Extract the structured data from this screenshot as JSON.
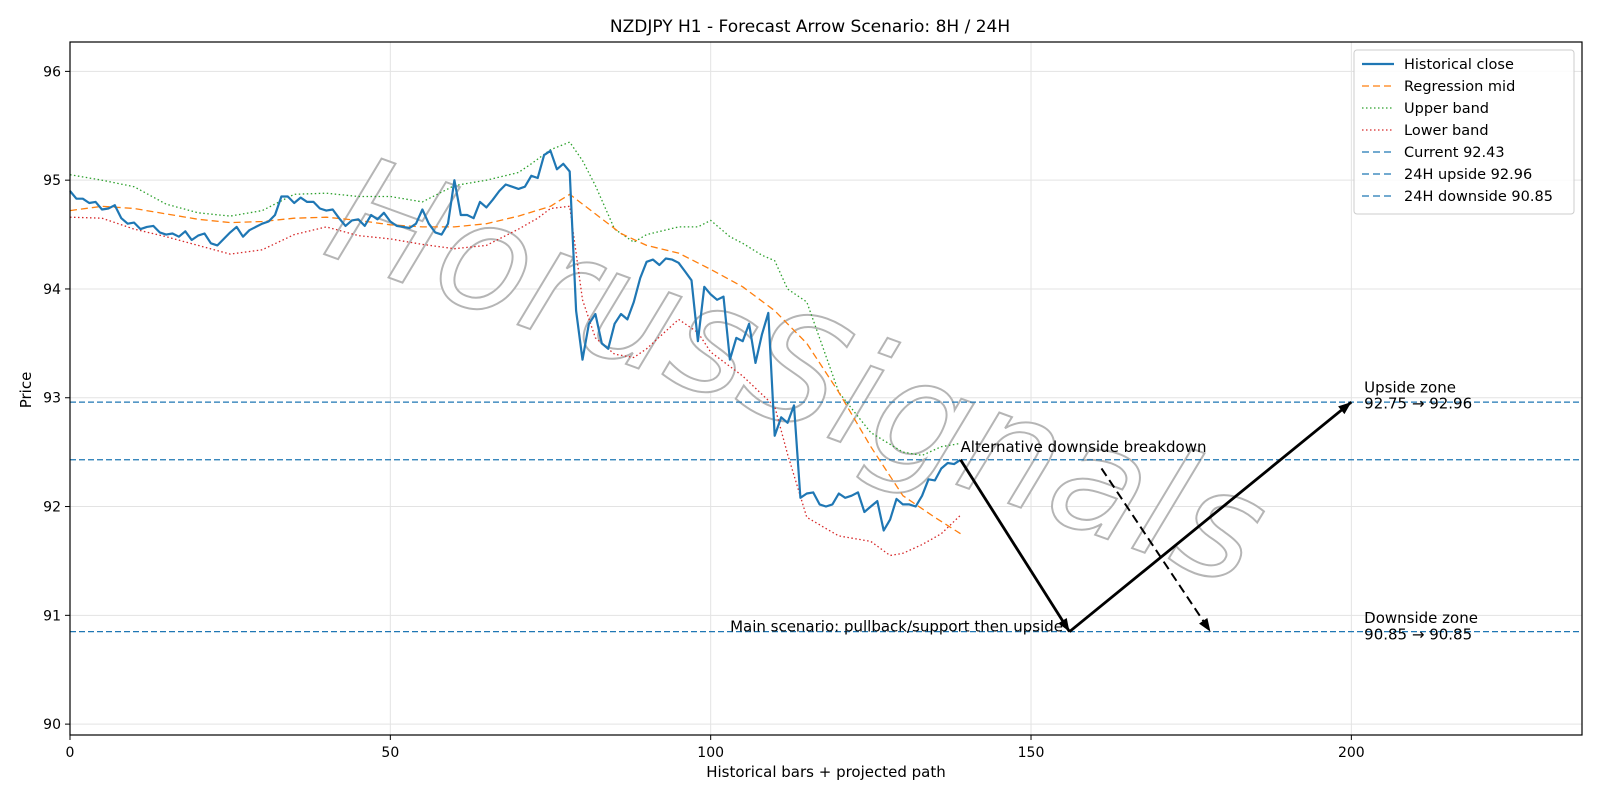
{
  "chart_data": {
    "type": "line",
    "title": "NZDJPY H1 - Forecast Arrow Scenario: 8H / 24H",
    "xlabel": "Historical bars + projected path",
    "ylabel": "Price",
    "xlim": [
      0,
      236
    ],
    "ylim": [
      89.9,
      96.27
    ],
    "xticks": [
      0,
      50,
      100,
      150,
      200
    ],
    "yticks": [
      90,
      91,
      92,
      93,
      94,
      95,
      96
    ],
    "grid": true,
    "legend_position": "top-right",
    "watermark": "HorusSignals",
    "colors": {
      "historical": "#1f77b4",
      "regression": "#ff7f0e",
      "upper": "#2ca02c",
      "lower": "#d62728",
      "levels": "#1f77b4",
      "arrows": "#000000"
    },
    "series": [
      {
        "name": "Historical close",
        "style": "solid",
        "key": "historical",
        "x": [
          0,
          1,
          2,
          3,
          4,
          5,
          6,
          7,
          8,
          9,
          10,
          11,
          12,
          13,
          14,
          15,
          16,
          17,
          18,
          19,
          20,
          21,
          22,
          23,
          24,
          25,
          26,
          27,
          28,
          29,
          30,
          31,
          32,
          33,
          34,
          35,
          36,
          37,
          38,
          39,
          40,
          41,
          42,
          43,
          44,
          45,
          46,
          47,
          48,
          49,
          50,
          51,
          52,
          53,
          54,
          55,
          56,
          57,
          58,
          59,
          60,
          61,
          62,
          63,
          64,
          65,
          66,
          67,
          68,
          69,
          70,
          71,
          72,
          73,
          74,
          75,
          76,
          77,
          78,
          79,
          80,
          81,
          82,
          83,
          84,
          85,
          86,
          87,
          88,
          89,
          90,
          91,
          92,
          93,
          94,
          95,
          96,
          97,
          98,
          99,
          100,
          101,
          102,
          103,
          104,
          105,
          106,
          107,
          108,
          109,
          110,
          111,
          112,
          113,
          114,
          115,
          116,
          117,
          118,
          119,
          120,
          121,
          122,
          123,
          124,
          125,
          126,
          127,
          128,
          129,
          130,
          131,
          132,
          133,
          134,
          135,
          136,
          137,
          138,
          139
        ],
        "values": [
          94.9,
          94.83,
          94.83,
          94.79,
          94.8,
          94.73,
          94.74,
          94.77,
          94.65,
          94.6,
          94.61,
          94.55,
          94.57,
          94.58,
          94.52,
          94.5,
          94.51,
          94.48,
          94.53,
          94.45,
          94.49,
          94.51,
          94.42,
          94.4,
          94.46,
          94.52,
          94.57,
          94.48,
          94.54,
          94.57,
          94.6,
          94.62,
          94.68,
          94.85,
          94.85,
          94.79,
          94.84,
          94.8,
          94.8,
          94.74,
          94.72,
          94.73,
          94.65,
          94.58,
          94.63,
          94.64,
          94.58,
          94.68,
          94.64,
          94.7,
          94.62,
          94.58,
          94.57,
          94.56,
          94.6,
          94.73,
          94.6,
          94.52,
          94.5,
          94.6,
          95.0,
          94.68,
          94.68,
          94.65,
          94.8,
          94.75,
          94.82,
          94.9,
          94.96,
          94.94,
          94.92,
          94.94,
          95.04,
          95.02,
          95.23,
          95.27,
          95.1,
          95.15,
          95.08,
          93.8,
          93.35,
          93.68,
          93.77,
          93.5,
          93.45,
          93.68,
          93.77,
          93.72,
          93.88,
          94.1,
          94.25,
          94.27,
          94.22,
          94.28,
          94.27,
          94.24,
          94.16,
          94.08,
          93.52,
          94.02,
          93.95,
          93.9,
          93.93,
          93.35,
          93.55,
          93.52,
          93.68,
          93.32,
          93.58,
          93.78,
          92.65,
          92.82,
          92.77,
          92.93,
          92.08,
          92.12,
          92.13,
          92.02,
          92.0,
          92.02,
          92.12,
          92.08,
          92.1,
          92.13,
          91.95,
          92.0,
          92.05,
          91.78,
          91.88,
          92.07,
          92.02,
          92.02,
          92.0,
          92.1,
          92.25,
          92.24,
          92.35,
          92.4,
          92.39,
          92.43
        ]
      },
      {
        "name": "Regression mid",
        "style": "dashed",
        "key": "regression",
        "x": [
          0,
          5,
          10,
          15,
          20,
          25,
          30,
          35,
          40,
          45,
          50,
          55,
          60,
          65,
          70,
          75,
          78,
          82,
          86,
          90,
          95,
          100,
          105,
          110,
          115,
          120,
          125,
          130,
          135,
          139
        ],
        "values": [
          94.72,
          94.76,
          94.74,
          94.69,
          94.64,
          94.61,
          94.62,
          94.65,
          94.66,
          94.63,
          94.59,
          94.57,
          94.57,
          94.6,
          94.67,
          94.76,
          94.87,
          94.69,
          94.51,
          94.4,
          94.33,
          94.18,
          94.02,
          93.8,
          93.5,
          93.05,
          92.55,
          92.1,
          91.9,
          91.75
        ]
      },
      {
        "name": "Upper band",
        "style": "dotted",
        "key": "upper",
        "x": [
          0,
          5,
          10,
          15,
          20,
          25,
          30,
          35,
          40,
          45,
          50,
          55,
          60,
          65,
          70,
          72,
          75,
          78,
          80,
          82,
          85,
          88,
          90,
          95,
          98,
          100,
          103,
          105,
          108,
          110,
          112,
          115,
          120,
          125,
          130,
          133,
          136,
          139
        ],
        "values": [
          95.05,
          95.0,
          94.94,
          94.78,
          94.7,
          94.67,
          94.72,
          94.87,
          94.88,
          94.85,
          94.85,
          94.8,
          94.95,
          95.0,
          95.07,
          95.15,
          95.28,
          95.35,
          95.18,
          94.95,
          94.55,
          94.43,
          94.5,
          94.57,
          94.57,
          94.63,
          94.48,
          94.42,
          94.31,
          94.26,
          94.0,
          93.88,
          93.05,
          92.68,
          92.5,
          92.47,
          92.55,
          92.58
        ]
      },
      {
        "name": "Lower band",
        "style": "dotted",
        "key": "lower",
        "x": [
          0,
          5,
          10,
          15,
          20,
          25,
          30,
          35,
          40,
          45,
          50,
          55,
          60,
          65,
          70,
          73,
          75,
          78,
          80,
          82,
          85,
          88,
          90,
          95,
          98,
          100,
          105,
          110,
          112,
          115,
          120,
          125,
          128,
          130,
          133,
          136,
          139
        ],
        "values": [
          94.66,
          94.65,
          94.55,
          94.48,
          94.4,
          94.32,
          94.36,
          94.5,
          94.57,
          94.49,
          94.46,
          94.41,
          94.37,
          94.4,
          94.55,
          94.65,
          94.74,
          94.76,
          93.9,
          93.55,
          93.4,
          93.37,
          93.45,
          93.72,
          93.6,
          93.42,
          93.2,
          92.92,
          92.48,
          91.9,
          91.73,
          91.68,
          91.55,
          91.57,
          91.65,
          91.75,
          91.92
        ]
      }
    ],
    "reference_lines": [
      {
        "name": "Current 92.43",
        "y": 92.43
      },
      {
        "name": "24H upside 92.96",
        "y": 92.96
      },
      {
        "name": "24H downside 90.85",
        "y": 90.85
      }
    ],
    "arrows": [
      {
        "from": [
          139,
          92.43
        ],
        "to": [
          156,
          90.85
        ],
        "style": "solid"
      },
      {
        "from": [
          156,
          90.85
        ],
        "to": [
          200,
          92.96
        ],
        "style": "solid"
      },
      {
        "from": [
          161,
          92.35
        ],
        "to": [
          178,
          90.85
        ],
        "style": "dashed"
      }
    ],
    "annotations": [
      {
        "text": "Alternative downside breakdown",
        "x": 139,
        "y": 92.5,
        "anchor": "start"
      },
      {
        "text": "Main scenario: pullback/support then upside",
        "x": 155,
        "y": 90.85,
        "anchor": "end"
      },
      {
        "text": "Upside zone",
        "x": 202,
        "y": 93.05,
        "anchor": "start"
      },
      {
        "text": "92.75 → 92.96",
        "x": 202,
        "y": 92.9,
        "anchor": "start"
      },
      {
        "text": "Downside zone",
        "x": 202,
        "y": 90.93,
        "anchor": "start"
      },
      {
        "text": "90.85 → 90.85",
        "x": 202,
        "y": 90.78,
        "anchor": "start"
      }
    ]
  }
}
